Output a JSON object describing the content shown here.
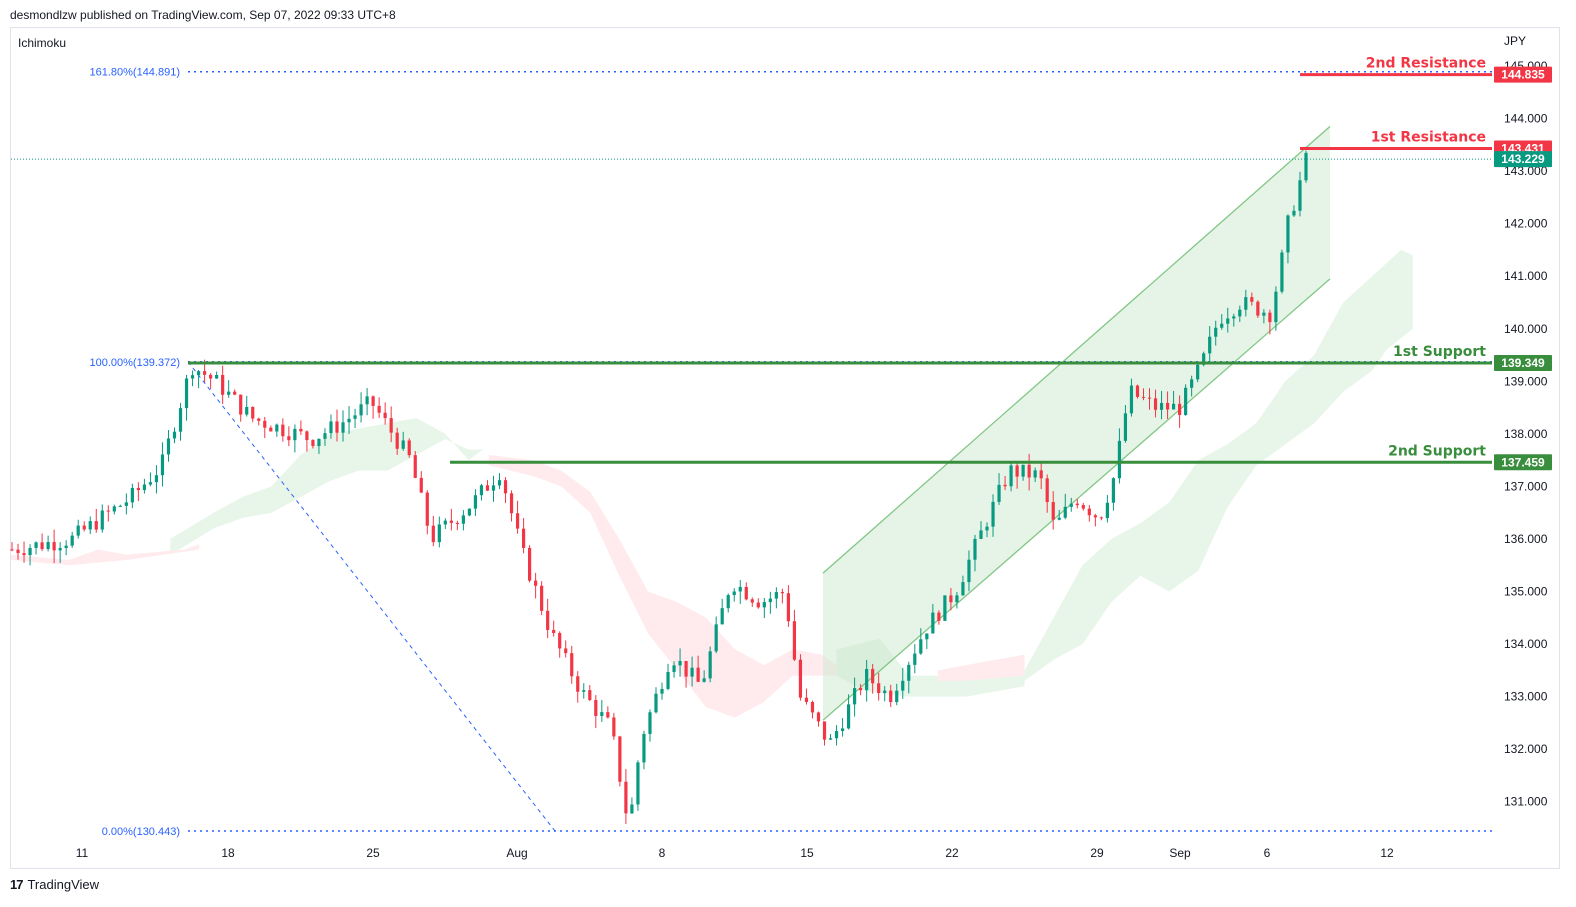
{
  "header": {
    "published": "desmondlzw published on TradingView.com, Sep 07, 2022 09:33 UTC+8",
    "indicator": "Ichimoku",
    "currency": "JPY"
  },
  "footer": {
    "brand": "TradingView",
    "logo": "tradingview-logo-icon"
  },
  "colors": {
    "up": "#089981",
    "down": "#f23645",
    "support": "#388e3c",
    "resistance": "#f23645",
    "fib": "#2962ff",
    "channel": "#81c784",
    "cloud_bull": "#e8f5e9",
    "cloud_bear": "#ffebee",
    "last_price": "#089981"
  },
  "chart_data": {
    "type": "candlestick",
    "symbol_currency": "JPY",
    "x_ticks": [
      "11",
      "18",
      "25",
      "Aug",
      "8",
      "15",
      "22",
      "29",
      "Sep",
      "6",
      "12"
    ],
    "y_ticks": [
      "131.000",
      "132.000",
      "133.000",
      "134.000",
      "135.000",
      "136.000",
      "137.000",
      "138.000",
      "139.000",
      "140.000",
      "141.000",
      "142.000",
      "143.000",
      "144.000",
      "145.000"
    ],
    "ylim": [
      130.2,
      145.6
    ],
    "fibonacci": [
      {
        "label": "161.80%(144.891)",
        "level": 144.891
      },
      {
        "label": "100.00%(139.372)",
        "level": 139.372
      },
      {
        "label": "0.00%(130.443)",
        "level": 130.443
      }
    ],
    "levels": [
      {
        "name": "2nd Resistance",
        "value": 144.835,
        "tag": "144.835",
        "kind": "resistance"
      },
      {
        "name": "1st Resistance",
        "value": 143.431,
        "tag": "143.431",
        "kind": "resistance"
      },
      {
        "name": "1st Support",
        "value": 139.349,
        "tag": "139.349",
        "kind": "support"
      },
      {
        "name": "2nd Support",
        "value": 137.459,
        "tag": "137.459",
        "kind": "support"
      }
    ],
    "last_price": {
      "value": 143.229,
      "tag": "143.229"
    },
    "channel": {
      "upper": [
        [
          16.5,
          135.35
        ],
        [
          37.2,
          143.85
        ]
      ],
      "lower": [
        [
          16.5,
          132.55
        ],
        [
          37.2,
          140.95
        ]
      ]
    },
    "close_path": [
      [
        0,
        135.8
      ],
      [
        2,
        136.0
      ],
      [
        4,
        136.8
      ],
      [
        5,
        137.4
      ],
      [
        6,
        139.3
      ],
      [
        6.8,
        139.0
      ],
      [
        8,
        138.3
      ],
      [
        10,
        137.9
      ],
      [
        11,
        138.2
      ],
      [
        12,
        138.6
      ],
      [
        13.3,
        137.5
      ],
      [
        14,
        136.0
      ],
      [
        15.4,
        136.7
      ],
      [
        16.3,
        137.3
      ],
      [
        17,
        135.8
      ],
      [
        18,
        134.2
      ],
      [
        19,
        133.1
      ],
      [
        20,
        132.4
      ],
      [
        20.6,
        130.5
      ],
      [
        21,
        132.2
      ],
      [
        22,
        133.8
      ],
      [
        23,
        133.2
      ],
      [
        24,
        135.2
      ],
      [
        25,
        134.8
      ],
      [
        25.8,
        135.0
      ],
      [
        26.3,
        133.0
      ],
      [
        27.3,
        132.1
      ],
      [
        28.5,
        133.4
      ],
      [
        29.3,
        133.0
      ],
      [
        30.5,
        134.3
      ],
      [
        31.5,
        135.0
      ],
      [
        32.5,
        136.3
      ],
      [
        33.3,
        137.3
      ],
      [
        34.3,
        137.2
      ],
      [
        34.8,
        136.2
      ],
      [
        35.5,
        136.8
      ],
      [
        36.3,
        136.4
      ],
      [
        36.8,
        137.2
      ],
      [
        37.3,
        138.8
      ],
      [
        38.2,
        138.5
      ],
      [
        39,
        138.5
      ],
      [
        39.7,
        139.3
      ],
      [
        40.3,
        140.2
      ],
      [
        41,
        140.5
      ],
      [
        42,
        140.3
      ],
      [
        42.3,
        141.0
      ],
      [
        42.6,
        142.0
      ],
      [
        43,
        142.8
      ],
      [
        43.2,
        143.2
      ]
    ]
  }
}
